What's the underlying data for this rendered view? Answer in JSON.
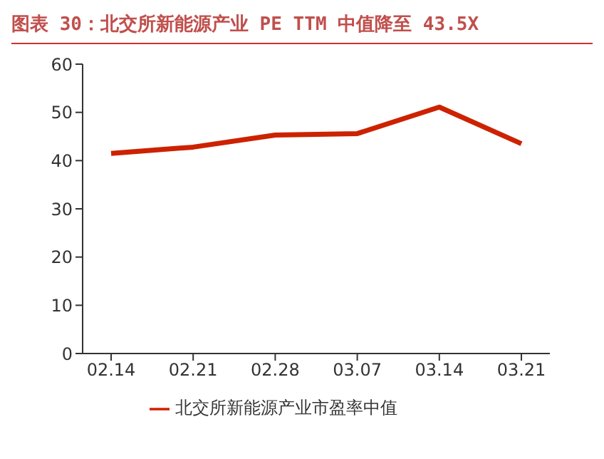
{
  "chart_data": {
    "type": "line",
    "title": "图表 30：北交所新能源产业 PE TTM 中值降至 43.5X",
    "categories": [
      "02.14",
      "02.21",
      "02.28",
      "03.07",
      "03.14",
      "03.21"
    ],
    "series": [
      {
        "name": "北交所新能源产业市盈率中值",
        "color": "#cc2200",
        "values": [
          41.5,
          42.8,
          45.3,
          45.6,
          51.1,
          43.5
        ]
      }
    ],
    "ylim": [
      0,
      60
    ],
    "yticks": [
      0,
      10,
      20,
      30,
      40,
      50,
      60
    ],
    "grid": false,
    "legend": "bottom",
    "marker": "none",
    "line_style": "solid"
  }
}
